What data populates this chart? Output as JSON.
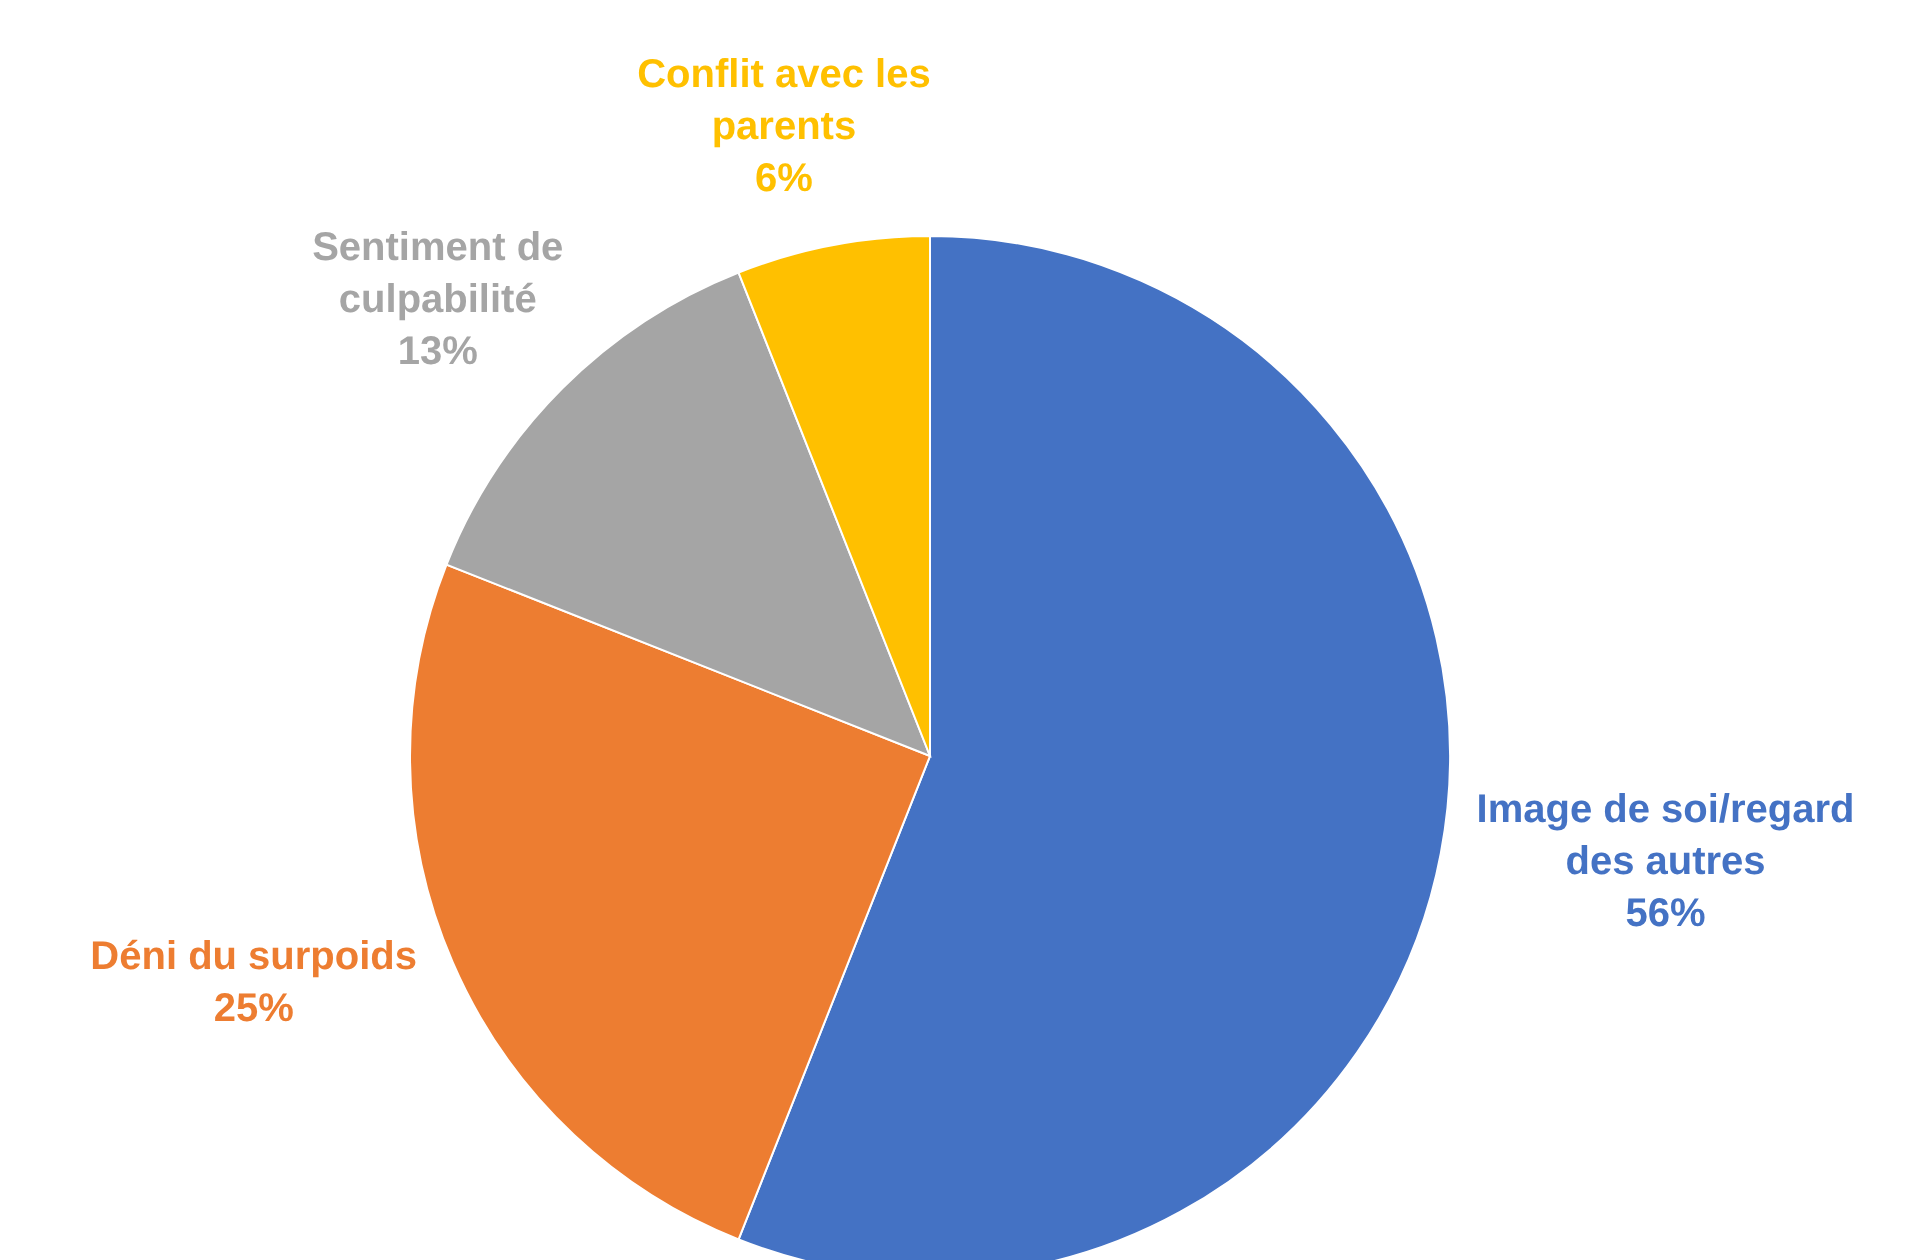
{
  "chart_data": {
    "type": "pie",
    "categories": [
      "Image de soi/regard des autres",
      "Déni du surpoids",
      "Sentiment de culpabilité",
      "Conflit avec les parents"
    ],
    "values": [
      56,
      25,
      13,
      6
    ],
    "colors": [
      "#4472c4",
      "#ed7d31",
      "#a5a5a5",
      "#ffc000"
    ],
    "value_labels": [
      "56%",
      "25%",
      "13%",
      "6%"
    ],
    "legend": false
  }
}
